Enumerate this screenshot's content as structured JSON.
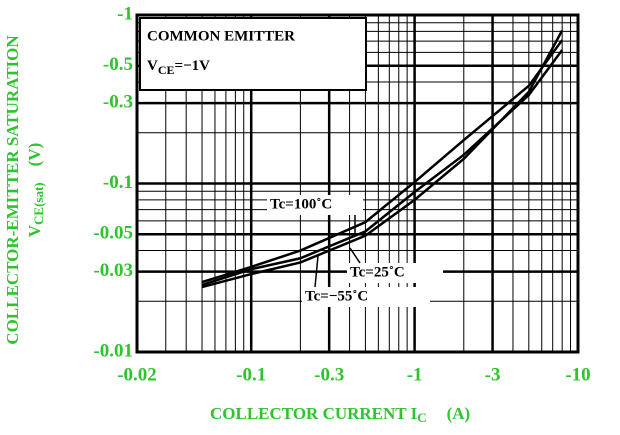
{
  "chart_data": {
    "type": "line",
    "x_label": [
      "COLLECTOR CURRENT I",
      "C",
      "(A)"
    ],
    "y_label": [
      "COLLECTOR-EMITTER SATURATION",
      "V",
      "CE(sat)",
      "(V)"
    ],
    "box_text": [
      "COMMON EMITTER",
      "V",
      "CE",
      "=−1V"
    ],
    "log_x": true,
    "log_y": true,
    "grid": true,
    "color": "#000000",
    "xlim": [
      -0.02,
      -10
    ],
    "ylim": [
      -0.01,
      -1
    ],
    "xticks": [
      -0.02,
      -0.1,
      -0.3,
      -1,
      -3,
      -10
    ],
    "yticks": [
      -0.01,
      -0.03,
      -0.05,
      -0.1,
      -0.3,
      -0.5,
      -1
    ],
    "minor_xticks": [
      -0.03,
      -0.04,
      -0.05,
      -0.06,
      -0.07,
      -0.08,
      -0.09,
      -0.2,
      -0.4,
      -0.5,
      -0.6,
      -0.7,
      -0.8,
      -0.9,
      -2,
      -4,
      -5,
      -6,
      -7,
      -8,
      -9
    ],
    "minor_yticks": [
      -0.02,
      -0.04,
      -0.06,
      -0.07,
      -0.08,
      -0.09,
      -0.2,
      -0.4,
      -0.6,
      -0.7,
      -0.8,
      -0.9
    ],
    "x": [
      -0.05,
      -0.1,
      -0.2,
      -0.5,
      -1,
      -2,
      -5,
      -8
    ],
    "series": [
      {
        "name": "Tc=100˚C",
        "color": "#000000",
        "values": [
          -0.026,
          -0.032,
          -0.04,
          -0.059,
          -0.102,
          -0.181,
          -0.38,
          -0.71
        ]
      },
      {
        "name": "Tc=25˚C",
        "color": "#000000",
        "values": [
          -0.025,
          -0.031,
          -0.036,
          -0.052,
          -0.089,
          -0.148,
          -0.335,
          -0.62
        ]
      },
      {
        "name": "Tc=−55˚C",
        "color": "#000000",
        "values": [
          -0.0243,
          -0.029,
          -0.034,
          -0.049,
          -0.08,
          -0.14,
          -0.35,
          -0.81
        ]
      }
    ]
  }
}
